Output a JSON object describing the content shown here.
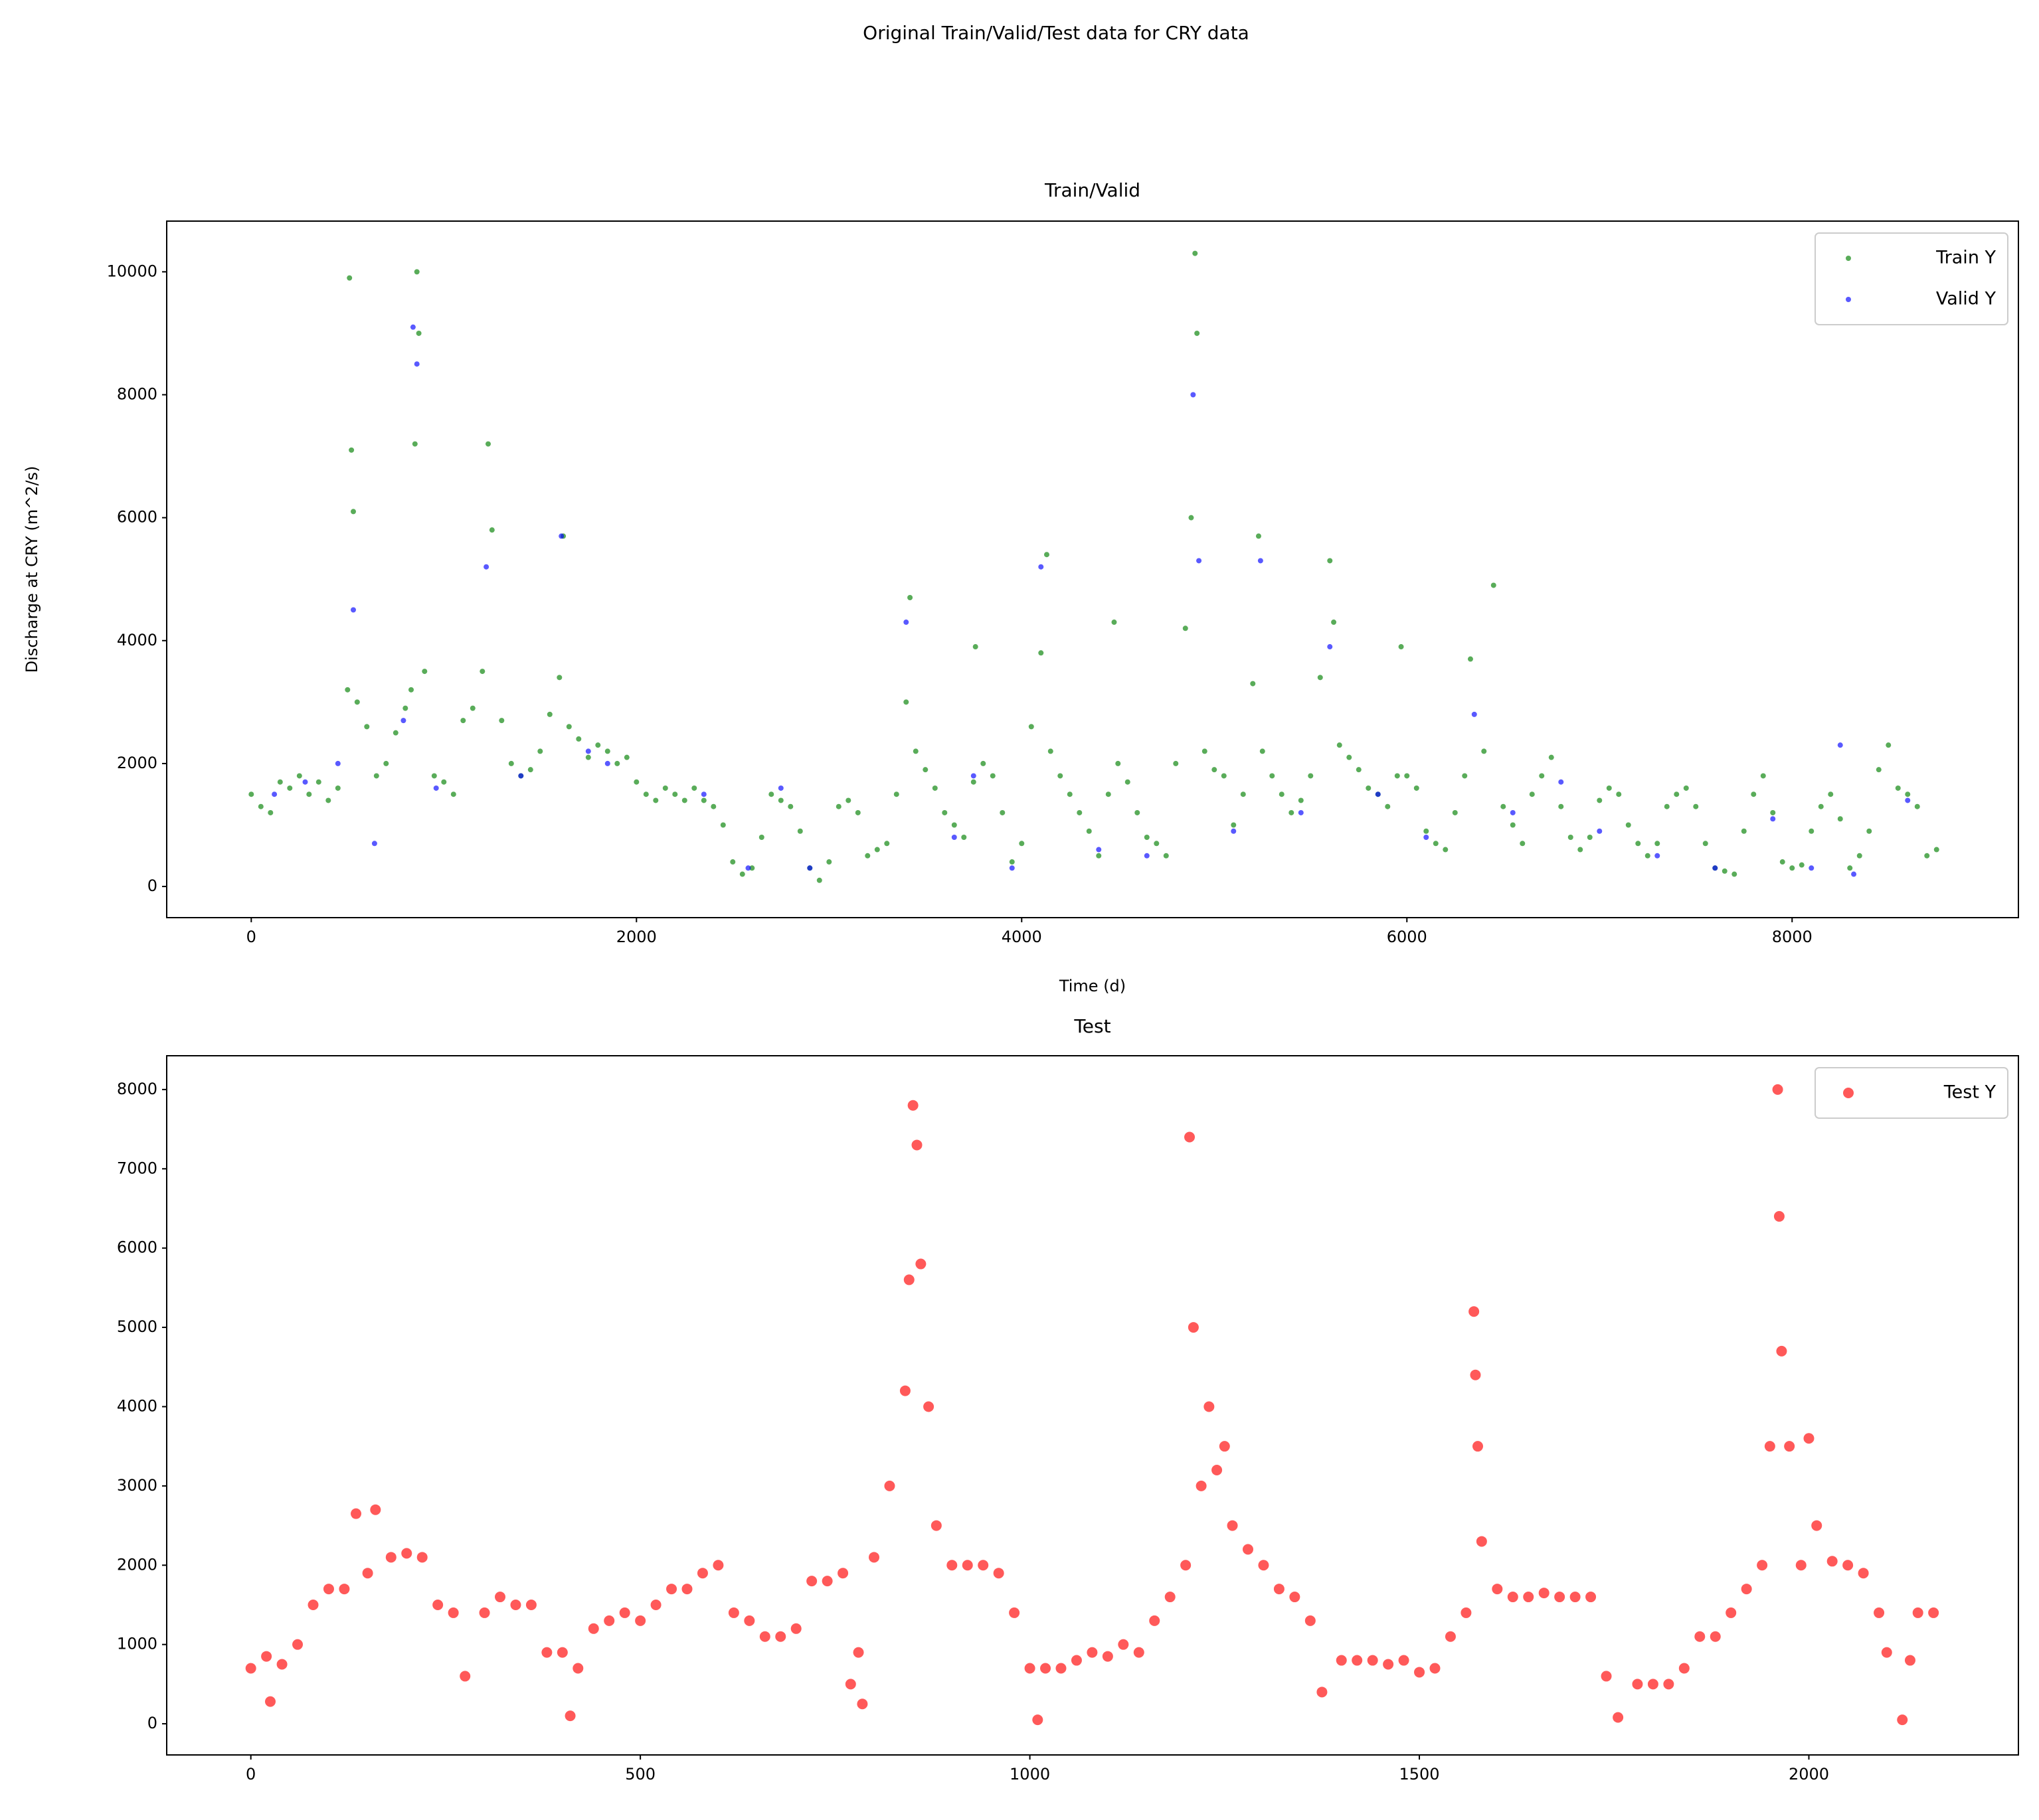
{
  "title": "Original Train/Valid/Test data for CRY data",
  "chart_data": [
    {
      "type": "scatter",
      "title": "Train/Valid",
      "x_label": "Time (d)",
      "y_label": "Discharge at CRY (m^2/s)",
      "xlim": [
        -439,
        9175
      ],
      "ylim": [
        -507,
        10825
      ],
      "xticks": [
        0,
        2000,
        4000,
        6000,
        8000
      ],
      "yticks": [
        0,
        2000,
        4000,
        6000,
        8000,
        10000
      ],
      "legend": "upper right",
      "marker_radius": 4,
      "series": [
        {
          "name": "Train Y",
          "color": "#008000",
          "x": [
            0,
            50,
            100,
            150,
            200,
            250,
            300,
            350,
            400,
            450,
            500,
            510,
            520,
            530,
            550,
            600,
            650,
            700,
            750,
            800,
            830,
            850,
            860,
            870,
            900,
            950,
            1000,
            1050,
            1100,
            1150,
            1200,
            1230,
            1250,
            1300,
            1350,
            1400,
            1450,
            1500,
            1550,
            1600,
            1620,
            1650,
            1700,
            1750,
            1800,
            1850,
            1900,
            1950,
            2000,
            2050,
            2100,
            2150,
            2200,
            2250,
            2300,
            2350,
            2400,
            2450,
            2500,
            2550,
            2600,
            2650,
            2700,
            2750,
            2800,
            2850,
            2900,
            2950,
            3000,
            3050,
            3100,
            3150,
            3200,
            3250,
            3300,
            3350,
            3400,
            3420,
            3450,
            3500,
            3550,
            3600,
            3650,
            3700,
            3750,
            3760,
            3800,
            3850,
            3900,
            3950,
            4000,
            4050,
            4100,
            4130,
            4150,
            4200,
            4250,
            4300,
            4350,
            4400,
            4450,
            4480,
            4500,
            4550,
            4600,
            4650,
            4700,
            4750,
            4800,
            4850,
            4880,
            4900,
            4910,
            4950,
            5000,
            5050,
            5100,
            5150,
            5200,
            5230,
            5250,
            5300,
            5350,
            5400,
            5450,
            5500,
            5550,
            5600,
            5620,
            5650,
            5700,
            5750,
            5800,
            5850,
            5900,
            5950,
            5970,
            6000,
            6050,
            6100,
            6150,
            6200,
            6250,
            6300,
            6330,
            6400,
            6450,
            6500,
            6550,
            6600,
            6650,
            6700,
            6750,
            6800,
            6850,
            6900,
            6950,
            7000,
            7050,
            7100,
            7150,
            7200,
            7250,
            7300,
            7350,
            7400,
            7450,
            7500,
            7550,
            7600,
            7650,
            7700,
            7750,
            7800,
            7850,
            7900,
            7950,
            8000,
            8050,
            8100,
            8150,
            8200,
            8250,
            8300,
            8350,
            8400,
            8450,
            8500,
            8550,
            8600,
            8650,
            8700,
            8750
          ],
          "values": [
            1500,
            1300,
            1200,
            1700,
            1600,
            1800,
            1500,
            1700,
            1400,
            1600,
            3200,
            9900,
            7100,
            6100,
            3000,
            2600,
            1800,
            2000,
            2500,
            2900,
            3200,
            7200,
            10000,
            9000,
            3500,
            1800,
            1700,
            1500,
            2700,
            2900,
            3500,
            7200,
            5800,
            2700,
            2000,
            1800,
            1900,
            2200,
            2800,
            3400,
            5700,
            2600,
            2400,
            2100,
            2300,
            2200,
            2000,
            2100,
            1700,
            1500,
            1400,
            1600,
            1500,
            1400,
            1600,
            1400,
            1300,
            1000,
            400,
            200,
            300,
            800,
            1500,
            1400,
            1300,
            900,
            300,
            100,
            400,
            1300,
            1400,
            1200,
            500,
            600,
            700,
            1500,
            3000,
            4700,
            2200,
            1900,
            1600,
            1200,
            1000,
            800,
            1700,
            3900,
            2000,
            1800,
            1200,
            400,
            700,
            2600,
            3800,
            5400,
            2200,
            1800,
            1500,
            1200,
            900,
            500,
            1500,
            4300,
            2000,
            1700,
            1200,
            800,
            700,
            500,
            2000,
            4200,
            6000,
            10300,
            9000,
            2200,
            1900,
            1800,
            1000,
            1500,
            3300,
            5700,
            2200,
            1800,
            1500,
            1200,
            1400,
            1800,
            3400,
            5300,
            4300,
            2300,
            2100,
            1900,
            1600,
            1500,
            1300,
            1800,
            3900,
            1800,
            1600,
            900,
            700,
            600,
            1200,
            1800,
            3700,
            2200,
            4900,
            1300,
            1000,
            700,
            1500,
            1800,
            2100,
            1300,
            800,
            600,
            800,
            1400,
            1600,
            1500,
            1000,
            700,
            500,
            700,
            1300,
            1500,
            1600,
            1300,
            700,
            300,
            250,
            200,
            900,
            1500,
            1800,
            1200,
            400,
            300,
            350,
            900,
            1300,
            1500,
            1100,
            300,
            500,
            900,
            1900,
            2300,
            1600,
            1500,
            1300,
            500,
            600
          ]
        },
        {
          "name": "Valid Y",
          "color": "#0000ff",
          "x": [
            120,
            280,
            450,
            530,
            640,
            790,
            840,
            860,
            960,
            1220,
            1400,
            1610,
            1750,
            1850,
            2350,
            2580,
            2750,
            2900,
            3400,
            3650,
            3750,
            3950,
            4100,
            4400,
            4650,
            4890,
            4920,
            5100,
            5240,
            5450,
            5600,
            5850,
            6100,
            6350,
            6550,
            6800,
            7000,
            7300,
            7600,
            7900,
            8100,
            8250,
            8320,
            8600
          ],
          "values": [
            1500,
            1700,
            2000,
            4500,
            700,
            2700,
            9100,
            8500,
            1600,
            5200,
            1800,
            5700,
            2200,
            2000,
            1500,
            300,
            1600,
            300,
            4300,
            800,
            1800,
            300,
            5200,
            600,
            500,
            8000,
            5300,
            900,
            5300,
            1200,
            3900,
            1500,
            800,
            2800,
            1200,
            1700,
            900,
            500,
            300,
            1100,
            300,
            2300,
            200,
            1400
          ]
        }
      ]
    },
    {
      "type": "scatter",
      "title": "Test",
      "xlim": [
        -108,
        2269
      ],
      "ylim": [
        -393,
        8426
      ],
      "xticks": [
        0,
        500,
        1000,
        1500,
        2000
      ],
      "yticks": [
        0,
        1000,
        2000,
        3000,
        4000,
        5000,
        6000,
        7000,
        8000
      ],
      "legend": "upper right",
      "marker_radius": 8,
      "series": [
        {
          "name": "Test Y",
          "color": "#ff0000",
          "x": [
            0,
            20,
            25,
            40,
            60,
            80,
            100,
            120,
            135,
            150,
            160,
            180,
            200,
            220,
            240,
            260,
            275,
            300,
            320,
            340,
            360,
            380,
            400,
            410,
            420,
            440,
            460,
            480,
            500,
            520,
            540,
            560,
            580,
            600,
            620,
            640,
            660,
            680,
            700,
            720,
            740,
            760,
            770,
            780,
            785,
            800,
            820,
            840,
            845,
            850,
            855,
            860,
            870,
            880,
            900,
            920,
            940,
            960,
            980,
            1000,
            1010,
            1020,
            1040,
            1060,
            1080,
            1100,
            1120,
            1140,
            1160,
            1180,
            1200,
            1205,
            1210,
            1220,
            1230,
            1240,
            1250,
            1260,
            1280,
            1300,
            1320,
            1340,
            1360,
            1375,
            1400,
            1420,
            1440,
            1460,
            1480,
            1500,
            1520,
            1540,
            1560,
            1570,
            1572,
            1575,
            1580,
            1600,
            1620,
            1640,
            1660,
            1680,
            1700,
            1720,
            1740,
            1755,
            1780,
            1800,
            1820,
            1840,
            1860,
            1880,
            1900,
            1920,
            1940,
            1950,
            1960,
            1962,
            1965,
            1975,
            1990,
            2000,
            2010,
            2030,
            2050,
            2070,
            2090,
            2100,
            2120,
            2130,
            2140,
            2160
          ],
          "values": [
            700,
            850,
            280,
            750,
            1000,
            1500,
            1700,
            1700,
            2650,
            1900,
            2700,
            2100,
            2150,
            2100,
            1500,
            1400,
            600,
            1400,
            1600,
            1500,
            1500,
            900,
            900,
            100,
            700,
            1200,
            1300,
            1400,
            1300,
            1500,
            1700,
            1700,
            1900,
            2000,
            1400,
            1300,
            1100,
            1100,
            1200,
            1800,
            1800,
            1900,
            500,
            900,
            250,
            2100,
            3000,
            4200,
            5600,
            7800,
            7300,
            5800,
            4000,
            2500,
            2000,
            2000,
            2000,
            1900,
            1400,
            700,
            50,
            700,
            700,
            800,
            900,
            850,
            1000,
            900,
            1300,
            1600,
            2000,
            7400,
            5000,
            3000,
            4000,
            3200,
            3500,
            2500,
            2200,
            2000,
            1700,
            1600,
            1300,
            400,
            800,
            800,
            800,
            750,
            800,
            650,
            700,
            1100,
            1400,
            5200,
            4400,
            3500,
            2300,
            1700,
            1600,
            1600,
            1650,
            1600,
            1600,
            1600,
            600,
            80,
            500,
            500,
            500,
            700,
            1100,
            1100,
            1400,
            1700,
            2000,
            3500,
            8000,
            6400,
            4700,
            3500,
            2000,
            3600,
            2500,
            2050,
            2000,
            1900,
            1400,
            900,
            50,
            800,
            1400,
            1400
          ]
        }
      ]
    }
  ]
}
